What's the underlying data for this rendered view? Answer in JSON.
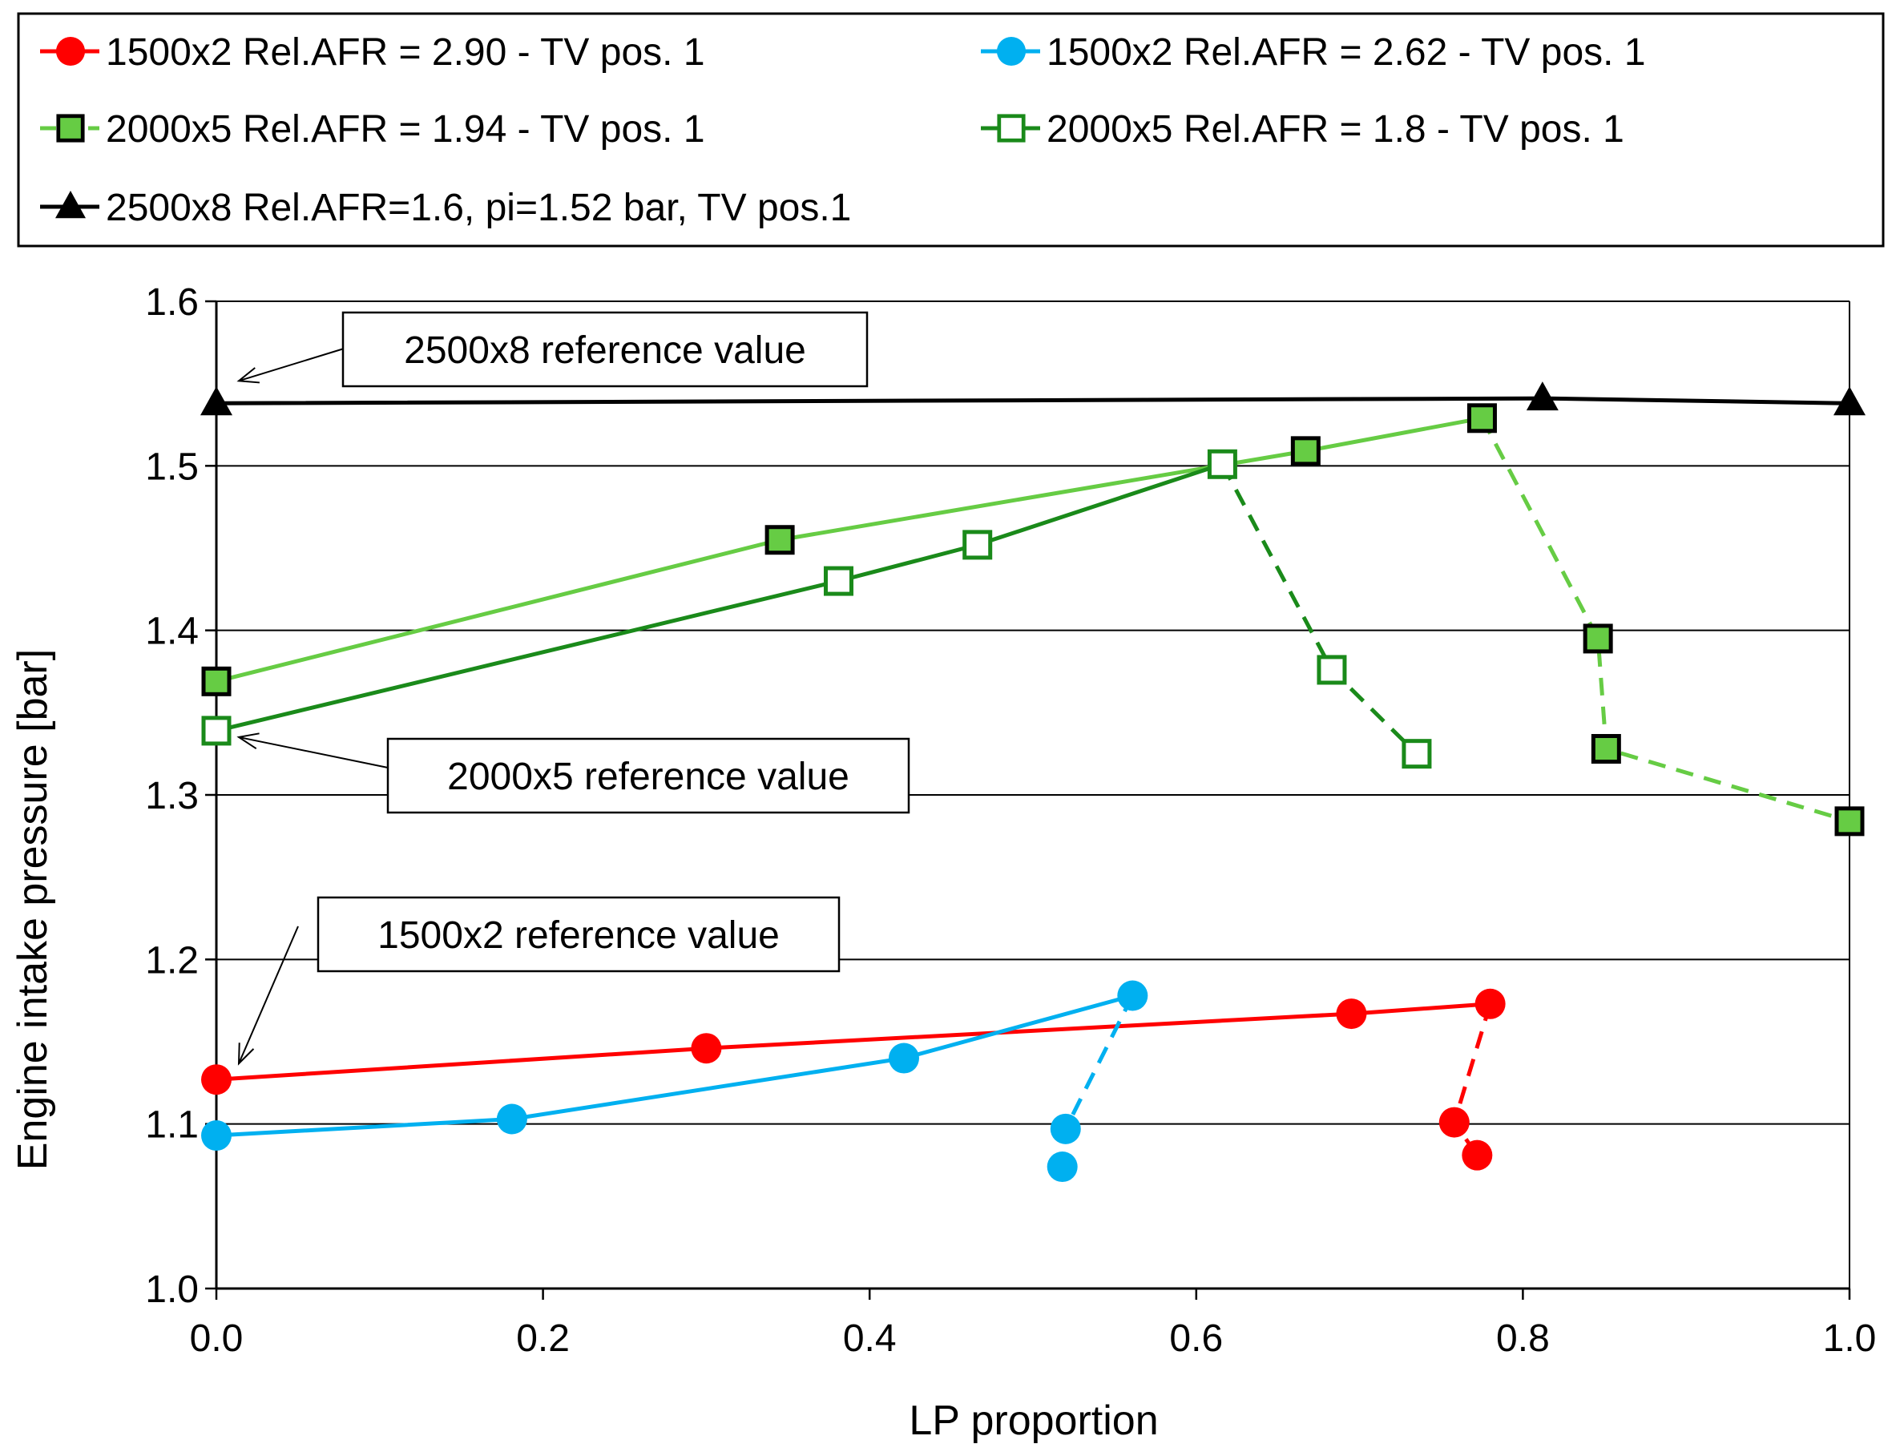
{
  "chart_data": {
    "type": "line",
    "xlabel": "LP proportion",
    "ylabel": "Engine intake pressure [bar]",
    "xlim": [
      0.0,
      1.0
    ],
    "ylim": [
      1.0,
      1.6
    ],
    "xticks": [
      "0.0",
      "0.2",
      "0.4",
      "0.6",
      "0.8",
      "1.0"
    ],
    "yticks": [
      "1.0",
      "1.1",
      "1.2",
      "1.3",
      "1.4",
      "1.5",
      "1.6"
    ],
    "grid": "horizontal",
    "legend_position": "top",
    "series": [
      {
        "name": "1500x2 Rel.AFR = 2.90 - TV pos. 1",
        "color": "#ff0000",
        "marker": "circle",
        "solid": {
          "x": [
            0.0,
            0.3,
            0.695,
            0.78
          ],
          "y": [
            1.127,
            1.146,
            1.167,
            1.173
          ]
        },
        "dashed": {
          "x": [
            0.78,
            0.758,
            0.772
          ],
          "y": [
            1.173,
            1.101,
            1.081
          ]
        }
      },
      {
        "name": "1500x2 Rel.AFR = 2.62 - TV pos. 1",
        "color": "#00b0f0",
        "marker": "circle",
        "solid": {
          "x": [
            0.0,
            0.181,
            0.421,
            0.561
          ],
          "y": [
            1.093,
            1.103,
            1.14,
            1.178
          ]
        },
        "dashed": {
          "x": [
            0.561,
            0.52,
            0.518
          ],
          "y": [
            1.178,
            1.097,
            1.074
          ]
        }
      },
      {
        "name": "2000x5 Rel.AFR = 1.94 - TV pos. 1",
        "color": "#66cc44",
        "marker": "square-filled",
        "solid": {
          "x": [
            0.0,
            0.345,
            0.667,
            0.775
          ],
          "y": [
            1.369,
            1.455,
            1.509,
            1.529
          ]
        },
        "dashed": {
          "x": [
            0.775,
            0.846,
            0.851,
            1.0
          ],
          "y": [
            1.529,
            1.395,
            1.328,
            1.284
          ]
        }
      },
      {
        "name": "2000x5 Rel.AFR = 1.8 - TV pos. 1",
        "color": "#1a8a1a",
        "marker": "square-open",
        "solid": {
          "x": [
            0.0,
            0.381,
            0.466,
            0.616
          ],
          "y": [
            1.339,
            1.43,
            1.452,
            1.501
          ]
        },
        "dashed": {
          "x": [
            0.616,
            0.683,
            0.735
          ],
          "y": [
            1.501,
            1.376,
            1.325
          ]
        }
      },
      {
        "name": "2500x8 Rel.AFR=1.6, pi=1.52 bar, TV pos.1",
        "color": "#000000",
        "marker": "triangle",
        "solid": {
          "x": [
            0.0,
            0.812,
            1.0
          ],
          "y": [
            1.538,
            1.541,
            1.538
          ]
        },
        "dashed": {
          "x": [],
          "y": []
        }
      }
    ],
    "annotations": [
      {
        "text": "2500x8 reference value",
        "target_x": 0.0,
        "target_y": 1.538
      },
      {
        "text": "2000x5 reference value",
        "target_x": 0.0,
        "target_y": 1.339
      },
      {
        "text": "1500x2 reference value",
        "target_x": 0.0,
        "target_y": 1.127
      }
    ]
  }
}
